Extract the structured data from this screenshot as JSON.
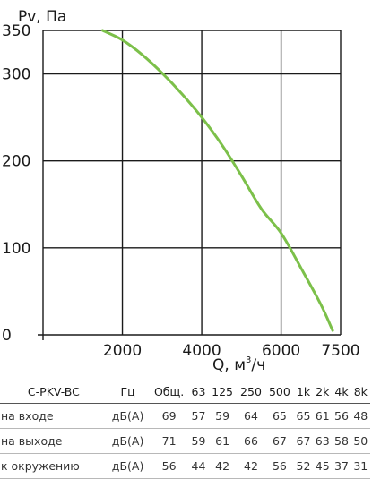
{
  "chart_data": {
    "type": "line",
    "xlabel": "Q, м",
    "xlabel_sup": "3",
    "xlabel_tail": "/ч",
    "ylabel": "Pv, Па",
    "xlim": [
      0,
      7500
    ],
    "ylim": [
      0,
      350
    ],
    "x_ticks": [
      0,
      2000,
      4000,
      6000,
      7500
    ],
    "y_ticks": [
      0,
      100,
      200,
      300,
      350
    ],
    "x_tick_labels": [
      "0",
      "2000",
      "4000",
      "6000",
      "7500"
    ],
    "y_tick_labels": [
      "0",
      "100",
      "200",
      "300",
      "350"
    ],
    "x_grid": [
      2000,
      4000,
      6000,
      7500
    ],
    "y_grid": [
      100,
      200,
      300,
      350
    ],
    "grid": true,
    "color": "#7cc04a",
    "series": [
      {
        "x": [
          1500,
          2000,
          2500,
          3000,
          3500,
          4000,
          4500,
          5000,
          5500,
          6000,
          6500,
          7000,
          7300
        ],
        "y": [
          350,
          339,
          322,
          301,
          277,
          250,
          219,
          183,
          145,
          117,
          77,
          35,
          5
        ]
      }
    ]
  },
  "table": {
    "headers": [
      "C-PKV-BC",
      "Гц",
      "Общ.",
      "63",
      "125",
      "250",
      "500",
      "1k",
      "2k",
      "4k",
      "8k"
    ],
    "rows": [
      [
        "на входе",
        "дБ(А)",
        "69",
        "57",
        "59",
        "64",
        "65",
        "65",
        "61",
        "56",
        "48"
      ],
      [
        "на выходе",
        "дБ(А)",
        "71",
        "59",
        "61",
        "66",
        "67",
        "67",
        "63",
        "58",
        "50"
      ],
      [
        "к окружению",
        "дБ(А)",
        "56",
        "44",
        "42",
        "42",
        "56",
        "52",
        "45",
        "37",
        "31"
      ]
    ]
  }
}
